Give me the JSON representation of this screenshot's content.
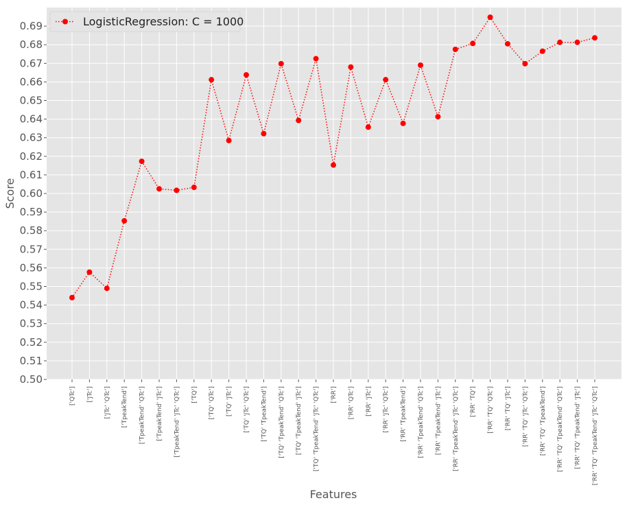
{
  "chart_data": {
    "type": "line",
    "xlabel": "Features",
    "ylabel": "Score",
    "ylim": [
      0.5,
      0.7
    ],
    "yticks": [
      "0.50",
      "0.51",
      "0.52",
      "0.53",
      "0.54",
      "0.55",
      "0.56",
      "0.57",
      "0.58",
      "0.59",
      "0.60",
      "0.61",
      "0.62",
      "0.63",
      "0.64",
      "0.65",
      "0.66",
      "0.67",
      "0.68",
      "0.69"
    ],
    "grid": true,
    "legend_position": "top-left",
    "categories": [
      "['QTc']",
      "['JTc']",
      "['JTc' 'QTc']",
      "['TpeakTend']",
      "['TpeakTend' 'QTc']",
      "['TpeakTend' 'JTc']",
      "['TpeakTend' 'JTc' 'QTc']",
      "['TQ']",
      "['TQ' 'QTc']",
      "['TQ' 'JTc']",
      "['TQ' 'JTc' 'QTc']",
      "['TQ' 'TpeakTend']",
      "['TQ' 'TpeakTend' 'QTc']",
      "['TQ' 'TpeakTend' 'JTc']",
      "['TQ' 'TpeakTend' 'JTc' 'QTc']",
      "['RR']",
      "['RR' 'QTc']",
      "['RR' 'JTc']",
      "['RR' 'JTc' 'QTc']",
      "['RR' 'TpeakTend']",
      "['RR' 'TpeakTend' 'QTc']",
      "['RR' 'TpeakTend' 'JTc']",
      "['RR' 'TpeakTend' 'JTc' 'QTc']",
      "['RR' 'TQ']",
      "['RR' 'TQ' 'QTc']",
      "['RR' 'TQ' 'JTc']",
      "['RR' 'TQ' 'JTc' 'QTc']",
      "['RR' 'TQ' 'TpeakTend']",
      "['RR' 'TQ' 'TpeakTend' 'QTc']",
      "['RR' 'TQ' 'TpeakTend' 'JTc']",
      "['RR' 'TQ' 'TpeakTend' 'JTc' 'QTc']"
    ],
    "series": [
      {
        "name": "LogisticRegression: C = 1000",
        "color": "#ff0000",
        "line_style": "dotted",
        "marker": "circle",
        "values": [
          0.544,
          0.5577,
          0.549,
          0.5853,
          0.6173,
          0.6025,
          0.6017,
          0.6033,
          0.6612,
          0.6285,
          0.6638,
          0.6322,
          0.6698,
          0.6393,
          0.6725,
          0.6153,
          0.668,
          0.6357,
          0.6612,
          0.6377,
          0.669,
          0.6413,
          0.6775,
          0.6807,
          0.6948,
          0.6805,
          0.6698,
          0.6765,
          0.6813,
          0.6813,
          0.6837
        ]
      }
    ]
  },
  "colors": {
    "plot_background": "#e5e5e5",
    "grid": "#ffffff",
    "legend_background": "#e5e5e5",
    "legend_border": "#d6d6d6"
  }
}
